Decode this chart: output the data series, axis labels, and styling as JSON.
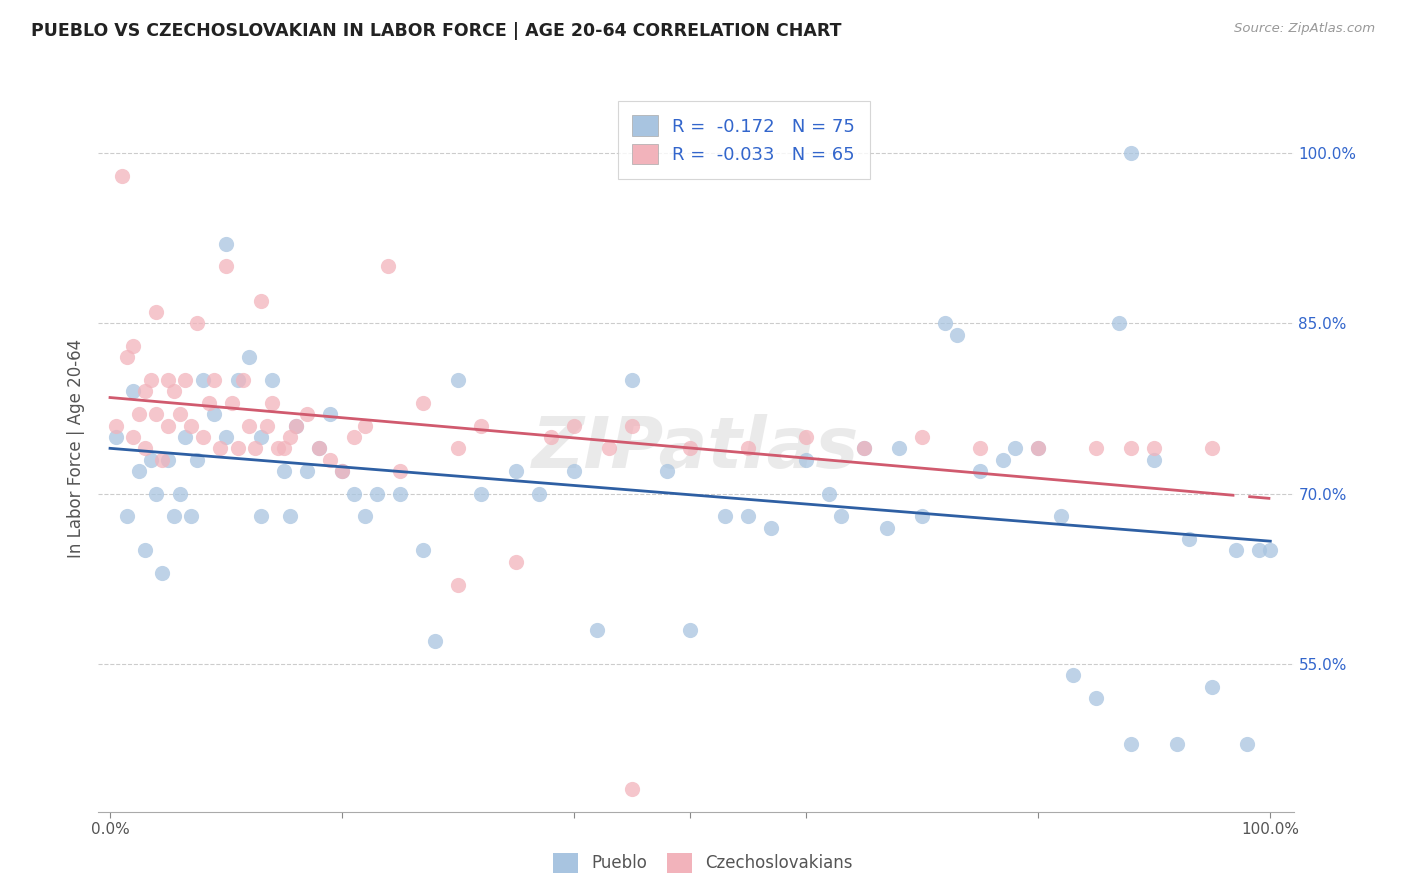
{
  "title": "PUEBLO VS CZECHOSLOVAKIAN IN LABOR FORCE | AGE 20-64 CORRELATION CHART",
  "source": "Source: ZipAtlas.com",
  "ylabel": "In Labor Force | Age 20-64",
  "pueblo_color": "#a8c4e0",
  "czechoslovakian_color": "#f2b3bb",
  "pueblo_line_color": "#2e5fa3",
  "czechoslovakian_line_color": "#d05a6e",
  "pueblo_R": -0.172,
  "pueblo_N": 75,
  "czechoslovakian_R": -0.033,
  "czechoslovakian_N": 65,
  "watermark": "ZIPatlas",
  "background_color": "#ffffff",
  "grid_color": "#cccccc",
  "right_tick_color": "#3366cc",
  "y_tick_values": [
    0.55,
    0.7,
    0.85,
    1.0
  ],
  "y_tick_labels": [
    "55.0%",
    "70.0%",
    "85.0%",
    "100.0%"
  ],
  "pueblo_scatter_x": [
    0.005,
    0.015,
    0.02,
    0.025,
    0.03,
    0.035,
    0.04,
    0.045,
    0.05,
    0.055,
    0.06,
    0.065,
    0.07,
    0.075,
    0.08,
    0.09,
    0.1,
    0.1,
    0.11,
    0.12,
    0.13,
    0.13,
    0.14,
    0.15,
    0.155,
    0.16,
    0.17,
    0.18,
    0.19,
    0.2,
    0.21,
    0.22,
    0.23,
    0.25,
    0.27,
    0.3,
    0.32,
    0.35,
    0.37,
    0.4,
    0.42,
    0.45,
    0.48,
    0.5,
    0.53,
    0.55,
    0.57,
    0.6,
    0.62,
    0.63,
    0.65,
    0.67,
    0.68,
    0.7,
    0.72,
    0.73,
    0.75,
    0.77,
    0.78,
    0.8,
    0.82,
    0.83,
    0.85,
    0.87,
    0.88,
    0.9,
    0.92,
    0.93,
    0.95,
    0.97,
    0.98,
    0.99,
    1.0,
    0.28,
    0.88
  ],
  "pueblo_scatter_y": [
    0.75,
    0.68,
    0.79,
    0.72,
    0.65,
    0.73,
    0.7,
    0.63,
    0.73,
    0.68,
    0.7,
    0.75,
    0.68,
    0.73,
    0.8,
    0.77,
    0.92,
    0.75,
    0.8,
    0.82,
    0.75,
    0.68,
    0.8,
    0.72,
    0.68,
    0.76,
    0.72,
    0.74,
    0.77,
    0.72,
    0.7,
    0.68,
    0.7,
    0.7,
    0.65,
    0.8,
    0.7,
    0.72,
    0.7,
    0.72,
    0.58,
    0.8,
    0.72,
    0.58,
    0.68,
    0.68,
    0.67,
    0.73,
    0.7,
    0.68,
    0.74,
    0.67,
    0.74,
    0.68,
    0.85,
    0.84,
    0.72,
    0.73,
    0.74,
    0.74,
    0.68,
    0.54,
    0.52,
    0.85,
    0.48,
    0.73,
    0.48,
    0.66,
    0.53,
    0.65,
    0.48,
    0.65,
    0.65,
    0.57,
    1.0
  ],
  "czech_scatter_x": [
    0.005,
    0.01,
    0.015,
    0.02,
    0.02,
    0.025,
    0.03,
    0.03,
    0.035,
    0.04,
    0.04,
    0.045,
    0.05,
    0.05,
    0.055,
    0.06,
    0.065,
    0.07,
    0.075,
    0.08,
    0.085,
    0.09,
    0.095,
    0.1,
    0.105,
    0.11,
    0.115,
    0.12,
    0.125,
    0.13,
    0.135,
    0.14,
    0.145,
    0.15,
    0.155,
    0.16,
    0.17,
    0.18,
    0.19,
    0.2,
    0.21,
    0.22,
    0.24,
    0.25,
    0.27,
    0.3,
    0.32,
    0.35,
    0.38,
    0.4,
    0.43,
    0.45,
    0.5,
    0.55,
    0.6,
    0.65,
    0.7,
    0.75,
    0.8,
    0.85,
    0.88,
    0.9,
    0.95,
    0.3,
    0.45
  ],
  "czech_scatter_y": [
    0.76,
    0.98,
    0.82,
    0.75,
    0.83,
    0.77,
    0.79,
    0.74,
    0.8,
    0.77,
    0.86,
    0.73,
    0.76,
    0.8,
    0.79,
    0.77,
    0.8,
    0.76,
    0.85,
    0.75,
    0.78,
    0.8,
    0.74,
    0.9,
    0.78,
    0.74,
    0.8,
    0.76,
    0.74,
    0.87,
    0.76,
    0.78,
    0.74,
    0.74,
    0.75,
    0.76,
    0.77,
    0.74,
    0.73,
    0.72,
    0.75,
    0.76,
    0.9,
    0.72,
    0.78,
    0.74,
    0.76,
    0.64,
    0.75,
    0.76,
    0.74,
    0.76,
    0.74,
    0.74,
    0.75,
    0.74,
    0.75,
    0.74,
    0.74,
    0.74,
    0.74,
    0.74,
    0.74,
    0.62,
    0.44
  ]
}
